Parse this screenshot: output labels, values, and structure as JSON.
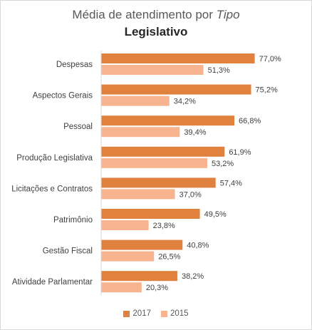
{
  "chart_data": {
    "type": "bar",
    "orientation": "horizontal",
    "title_prefix": "Média de atendimento por",
    "title_italic": "Tipo",
    "subtitle": "Legislativo",
    "categories": [
      "Despesas",
      "Aspectos Gerais",
      "Pessoal",
      "Produção Legislativa",
      "Licitações e Contratos",
      "Patrimônio",
      "Gestão Fiscal",
      "Atividade Parlamentar"
    ],
    "series": [
      {
        "name": "2017",
        "color": "#e0823e",
        "values": [
          77.0,
          75.2,
          66.8,
          61.9,
          57.4,
          49.5,
          40.8,
          38.2
        ],
        "labels": [
          "77,0%",
          "75,2%",
          "66,8%",
          "61,9%",
          "57,4%",
          "49,5%",
          "40,8%",
          "38,2%"
        ]
      },
      {
        "name": "2015",
        "color": "#f8b48e",
        "values": [
          51.3,
          34.2,
          39.4,
          53.2,
          37.0,
          23.8,
          26.5,
          20.3
        ],
        "labels": [
          "51,3%",
          "34,2%",
          "39,4%",
          "53,2%",
          "37,0%",
          "23,8%",
          "26,5%",
          "20,3%"
        ]
      }
    ],
    "xlim": [
      0,
      100
    ],
    "grid": false,
    "legend_position": "bottom"
  }
}
